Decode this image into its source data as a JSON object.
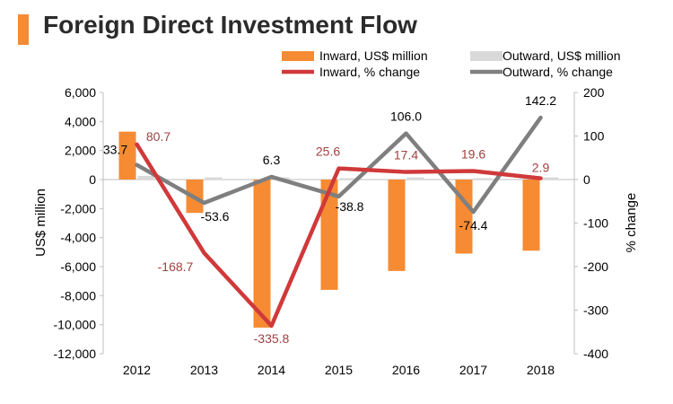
{
  "title": "Foreign Direct Investment Flow",
  "colors": {
    "inward_bar": "#F68B33",
    "outward_bar": "#D9D9D9",
    "inward_line": "#D0393A",
    "outward_line": "#7F7F7F",
    "inward_label": "#A04040",
    "outward_label": "#000000",
    "accent": "#F68B33"
  },
  "chart_data": {
    "type": "bar",
    "categories": [
      "2012",
      "2013",
      "2014",
      "2015",
      "2016",
      "2017",
      "2018"
    ],
    "series": [
      {
        "name": "Inward, US$ million",
        "kind": "bar",
        "axis": "left",
        "values": [
          3300,
          -2300,
          -10200,
          -7600,
          -6300,
          -5100,
          -4900
        ]
      },
      {
        "name": "Outward, US$ million",
        "kind": "bar",
        "axis": "left",
        "values": [
          250,
          150,
          150,
          100,
          150,
          100,
          150
        ]
      },
      {
        "name": "Inward, % change",
        "kind": "line",
        "axis": "right",
        "values": [
          80.7,
          -168.7,
          -335.8,
          25.6,
          17.4,
          19.6,
          2.9
        ],
        "labels": [
          "80.7",
          "-168.7",
          "-335.8",
          "25.6",
          "17.4",
          "19.6",
          "2.9"
        ]
      },
      {
        "name": "Outward, % change",
        "kind": "line",
        "axis": "right",
        "values": [
          33.7,
          -53.6,
          6.3,
          -38.8,
          106.0,
          -74.4,
          142.2
        ],
        "labels": [
          "33.7",
          "-53.6",
          "6.3",
          "-38.8",
          "106.0",
          "-74.4",
          "142.2"
        ]
      }
    ],
    "ylabel": "US$ million",
    "y2label": "% change",
    "ylim": [
      -12000,
      6000
    ],
    "y2lim": [
      -400,
      200
    ],
    "yticks": [
      6000,
      4000,
      2000,
      0,
      -2000,
      -4000,
      -6000,
      -8000,
      -10000,
      -12000
    ],
    "ytick_labels": [
      "6,000",
      "4,000",
      "2,000",
      "0",
      "-2,000",
      "-4,000",
      "-6,000",
      "-8,000",
      "-10,000",
      "-12,000"
    ],
    "y2ticks": [
      200,
      100,
      0,
      -100,
      -200,
      -300,
      -400
    ],
    "y2tick_labels": [
      "200",
      "100",
      "0",
      "-100",
      "-200",
      "-300",
      "-400"
    ],
    "legend_position": "top",
    "grid": false
  }
}
